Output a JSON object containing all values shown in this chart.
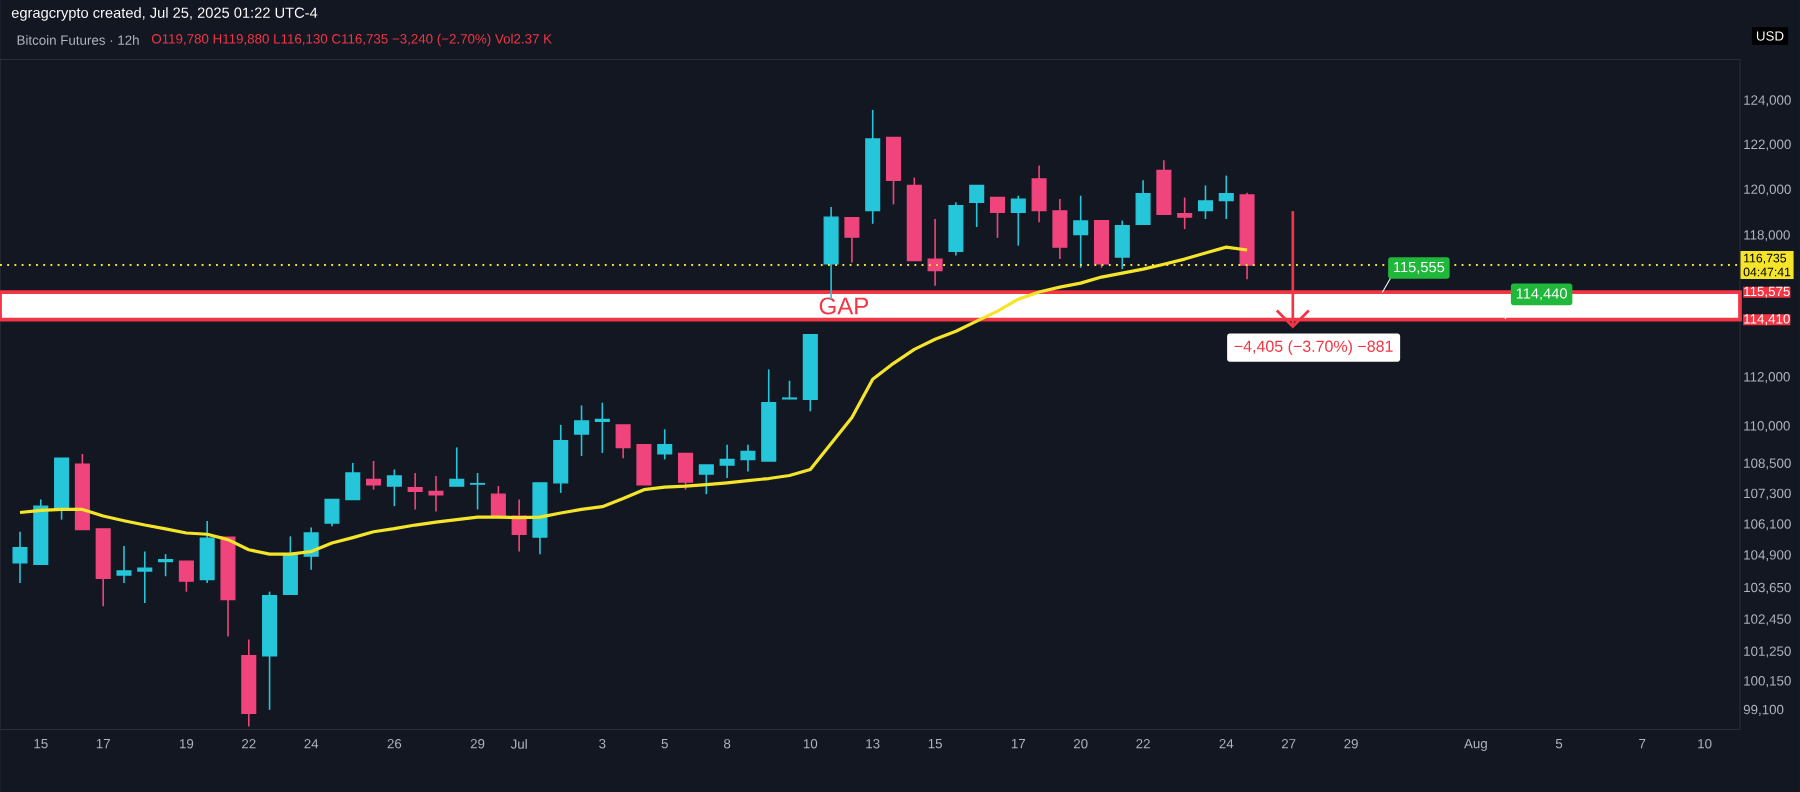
{
  "chart_data": {
    "type": "candlestick",
    "title": "Bitcoin Futures · 12h",
    "subtitle": "O119,780 H119,880 L116,130 C116,735 −3,240 (−2.70%) Vol2.37 K",
    "ylabel": "USD",
    "annotations": [
      "egragcrypto created, Jul 25, 2025 01:22 UTC-4",
      "04:47:41",
      "−4,405 (−3.70%) −881",
      {
        "text": "115,555",
        "y": 115555
      },
      {
        "text": "114,440",
        "y": 114440
      }
    ],
    "categories": [
      null,
      "15",
      null,
      null,
      "17",
      null,
      null,
      null,
      "19",
      null,
      null,
      "22",
      null,
      null,
      "24",
      null,
      null,
      null,
      "26",
      null,
      null,
      null,
      "29",
      null,
      "Jul",
      null,
      null,
      null,
      "3",
      null,
      null,
      "5",
      null,
      null,
      "8",
      null,
      null,
      null,
      "10",
      null,
      null,
      "13",
      null,
      null,
      "15",
      null,
      null,
      null,
      "17",
      null,
      null,
      "20",
      null,
      null,
      "22",
      null,
      null,
      null,
      "24",
      null,
      null,
      "27",
      null,
      null,
      "29",
      null,
      null,
      null,
      null,
      null,
      "Aug",
      null,
      null,
      null,
      "5",
      null,
      null,
      null,
      "7",
      null,
      null,
      "10",
      null
    ],
    "ohlc": [
      [
        104620,
        105830,
        103850,
        105210
      ],
      [
        104570,
        107090,
        104570,
        106830
      ],
      [
        106700,
        108730,
        106300,
        108730
      ],
      [
        108490,
        108900,
        105910,
        105910
      ],
      [
        105940,
        105940,
        102970,
        104030
      ],
      [
        104160,
        105270,
        103850,
        104310
      ],
      [
        104310,
        105060,
        103090,
        104420
      ],
      [
        104670,
        104960,
        104110,
        104750
      ],
      [
        104690,
        104690,
        103520,
        103920
      ],
      [
        103980,
        106250,
        103850,
        105580
      ],
      [
        105620,
        105620,
        101830,
        103220
      ],
      [
        101110,
        101710,
        98510,
        98990
      ],
      [
        101110,
        103520,
        99120,
        103370
      ],
      [
        103420,
        105650,
        103420,
        104930
      ],
      [
        104880,
        105990,
        104360,
        105780
      ],
      [
        106170,
        107090,
        106040,
        107090
      ],
      [
        107090,
        108540,
        107090,
        108140
      ],
      [
        107880,
        108620,
        107480,
        107670
      ],
      [
        107620,
        108280,
        106830,
        108020
      ],
      [
        107560,
        108140,
        106700,
        107410
      ],
      [
        107410,
        108020,
        106620,
        107270
      ],
      [
        107620,
        109160,
        107620,
        107880
      ],
      [
        107700,
        108140,
        106700,
        107720
      ],
      [
        107300,
        107620,
        106440,
        106440
      ],
      [
        106440,
        107090,
        105060,
        105730
      ],
      [
        105620,
        107750,
        104960,
        107750
      ],
      [
        107750,
        110070,
        107350,
        109430
      ],
      [
        109700,
        110860,
        108820,
        110230
      ],
      [
        110210,
        110970,
        108940,
        110290
      ],
      [
        110070,
        110070,
        108730,
        109160
      ],
      [
        109270,
        109270,
        107670,
        107670
      ],
      [
        108900,
        109890,
        108680,
        109270
      ],
      [
        108920,
        108920,
        107480,
        107780
      ],
      [
        108100,
        108460,
        107300,
        108460
      ],
      [
        108460,
        109270,
        107940,
        108680
      ],
      [
        108680,
        109270,
        108200,
        109000
      ],
      [
        108620,
        112340,
        108620,
        110970
      ],
      [
        111130,
        111870,
        111110,
        111160
      ],
      [
        111110,
        113780,
        110620,
        113780
      ],
      [
        116790,
        119250,
        115280,
        118810
      ],
      [
        118790,
        118790,
        116840,
        117940
      ],
      [
        119100,
        123590,
        118520,
        122280
      ],
      [
        122340,
        122340,
        119370,
        120430
      ],
      [
        120200,
        120550,
        116930,
        116930
      ],
      [
        116990,
        118730,
        115850,
        116500
      ],
      [
        117330,
        119460,
        117140,
        119310
      ],
      [
        119460,
        120200,
        118380,
        120200
      ],
      [
        119670,
        119670,
        117910,
        119020
      ],
      [
        119020,
        119750,
        117570,
        119600
      ],
      [
        120490,
        121080,
        118580,
        119100
      ],
      [
        119080,
        119600,
        116990,
        117510
      ],
      [
        118050,
        119750,
        116620,
        118640
      ],
      [
        118660,
        118660,
        116620,
        116790
      ],
      [
        117080,
        118660,
        116560,
        118440
      ],
      [
        118490,
        120430,
        118490,
        119840
      ],
      [
        120870,
        121320,
        118930,
        118930
      ],
      [
        118960,
        119670,
        118290,
        118810
      ],
      [
        119100,
        120200,
        118730,
        119520
      ],
      [
        119540,
        120640,
        118730,
        119840
      ],
      [
        119780,
        119880,
        116130,
        116735
      ],
      null,
      null,
      null,
      null,
      null,
      null,
      null,
      null,
      null,
      null,
      null,
      null,
      null,
      null,
      null,
      null,
      null,
      null,
      null,
      null,
      null,
      null,
      null
    ],
    "colors": [
      "#26c6da",
      "#26c6da",
      "#26c6da",
      "#f0457c",
      "#f0457c",
      "#26c6da",
      "#26c6da",
      "#26c6da",
      "#f0457c",
      "#26c6da",
      "#f0457c",
      "#f0457c",
      "#26c6da",
      "#26c6da",
      "#26c6da",
      "#26c6da",
      "#26c6da",
      "#f0457c",
      "#26c6da",
      "#f0457c",
      "#f0457c",
      "#26c6da",
      "#26c6da",
      "#f0457c",
      "#f0457c",
      "#26c6da",
      "#26c6da",
      "#26c6da",
      "#26c6da",
      "#f0457c",
      "#f0457c",
      "#26c6da",
      "#f0457c",
      "#26c6da",
      "#26c6da",
      "#26c6da",
      "#26c6da",
      "#26c6da",
      "#26c6da",
      "#26c6da",
      "#f0457c",
      "#26c6da",
      "#f0457c",
      "#f0457c",
      "#f0457c",
      "#26c6da",
      "#26c6da",
      "#f0457c",
      "#26c6da",
      "#f0457c",
      "#f0457c",
      "#26c6da",
      "#f0457c",
      "#26c6da",
      "#26c6da",
      "#f0457c",
      "#f0457c",
      "#26c6da",
      "#26c6da",
      "#f0457c",
      null,
      null,
      null,
      null,
      null,
      null,
      null,
      null,
      null,
      null,
      null,
      null,
      null,
      null,
      null,
      null,
      null,
      null,
      null,
      null,
      null,
      null,
      null
    ],
    "series": [
      {
        "type": "line",
        "color": "#f5e52a",
        "values": [
          106580,
          106660,
          106700,
          106700,
          106440,
          106260,
          106090,
          105940,
          105780,
          105730,
          105520,
          105130,
          104960,
          104960,
          105060,
          105390,
          105600,
          105830,
          105950,
          106090,
          106200,
          106300,
          106400,
          106400,
          106380,
          106400,
          106560,
          106700,
          106810,
          107130,
          107480,
          107580,
          107620,
          107680,
          107750,
          107840,
          107920,
          108040,
          108280,
          109320,
          110370,
          111930,
          112590,
          113170,
          113590,
          113930,
          114350,
          114770,
          115280,
          115580,
          115790,
          115960,
          116220,
          116390,
          116560,
          116770,
          116990,
          117250,
          117510,
          117380,
          null,
          null,
          null,
          null,
          null,
          null,
          null,
          null,
          null,
          null,
          null,
          null,
          null,
          null,
          null,
          null,
          null,
          null,
          null,
          null,
          null,
          null,
          null
        ]
      }
    ],
    "log": true,
    "ylim": [
      98400,
      125900
    ],
    "yticks": [
      {
        "value": 124000,
        "label": "124,000"
      },
      {
        "value": 122000,
        "label": "122,000"
      },
      {
        "value": 120000,
        "label": "120,000"
      },
      {
        "value": 118000,
        "label": "118,000"
      },
      {
        "value": 115575,
        "label": "115,575"
      },
      {
        "value": 114410,
        "label": "114,410"
      },
      {
        "value": 112000,
        "label": "112,000"
      },
      {
        "value": 110000,
        "label": "110,000"
      },
      {
        "value": 108500,
        "label": "108,500"
      },
      {
        "value": 107300,
        "label": "107,300"
      },
      {
        "value": 106100,
        "label": "106,100"
      },
      {
        "value": 104900,
        "label": "104,900"
      },
      {
        "value": 103650,
        "label": "103,650"
      },
      {
        "value": 102450,
        "label": "102,450"
      },
      {
        "value": 101250,
        "label": "101,250"
      },
      {
        "value": 100150,
        "label": "100,150"
      },
      {
        "value": 99100,
        "label": "99,100"
      }
    ],
    "bands": [
      {
        "axis": "y",
        "from": 114410,
        "to": 115575,
        "label": "GAP",
        "color": "#ffffff"
      }
    ],
    "ref_lines": [
      {
        "axis": "y",
        "value": 116735,
        "label": "116,735",
        "color": "#f5e52a",
        "line_style": "dotted"
      }
    ]
  }
}
